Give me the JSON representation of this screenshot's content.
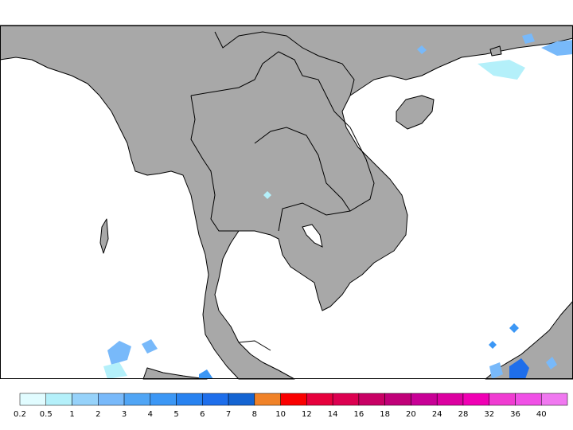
{
  "colorbar": {
    "labels": [
      "0.2",
      "0.5",
      "1",
      "2",
      "3",
      "4",
      "5",
      "6",
      "7",
      "8",
      "10",
      "12",
      "14",
      "16",
      "18",
      "20",
      "24",
      "28",
      "32",
      "36",
      "40"
    ],
    "colors": [
      "#e1fcff",
      "#b4f0fa",
      "#96d2fa",
      "#78b9fa",
      "#50a5f5",
      "#3c97f5",
      "#2882f0",
      "#1e6eeb",
      "#1464d2",
      "#f08228",
      "#fa0000",
      "#e6003c",
      "#dc0050",
      "#c80064",
      "#c00078",
      "#c80096",
      "#dc00a0",
      "#f000b4",
      "#f03cd2",
      "#f050e6",
      "#f078f0"
    ]
  }
}
